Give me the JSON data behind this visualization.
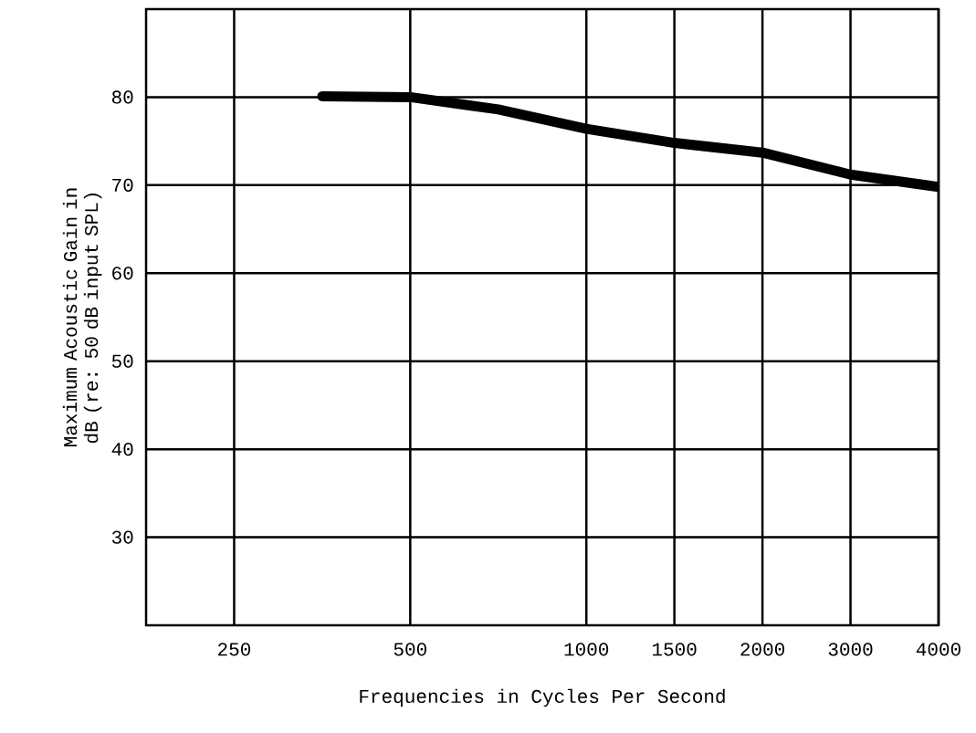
{
  "chart_data": {
    "type": "line",
    "xlabel": "Frequencies in Cycles Per Second",
    "ylabel": "Maximum Acoustic Gain in dB (re:  50 dB input SPL)",
    "categories": [
      "250",
      null,
      "500",
      null,
      "1000",
      "1500",
      "2000",
      "3000",
      "4000"
    ],
    "series": [
      {
        "color": "#000000",
        "values": [
          null,
          80.1,
          80,
          78.6,
          76.4,
          74.8,
          73.7,
          71.2,
          69.8
        ]
      }
    ],
    "ylim": [
      20,
      90
    ],
    "yticks": [
      30,
      40,
      50,
      60,
      70,
      80
    ],
    "grid": true,
    "marker": "none",
    "line_style": "solid"
  }
}
